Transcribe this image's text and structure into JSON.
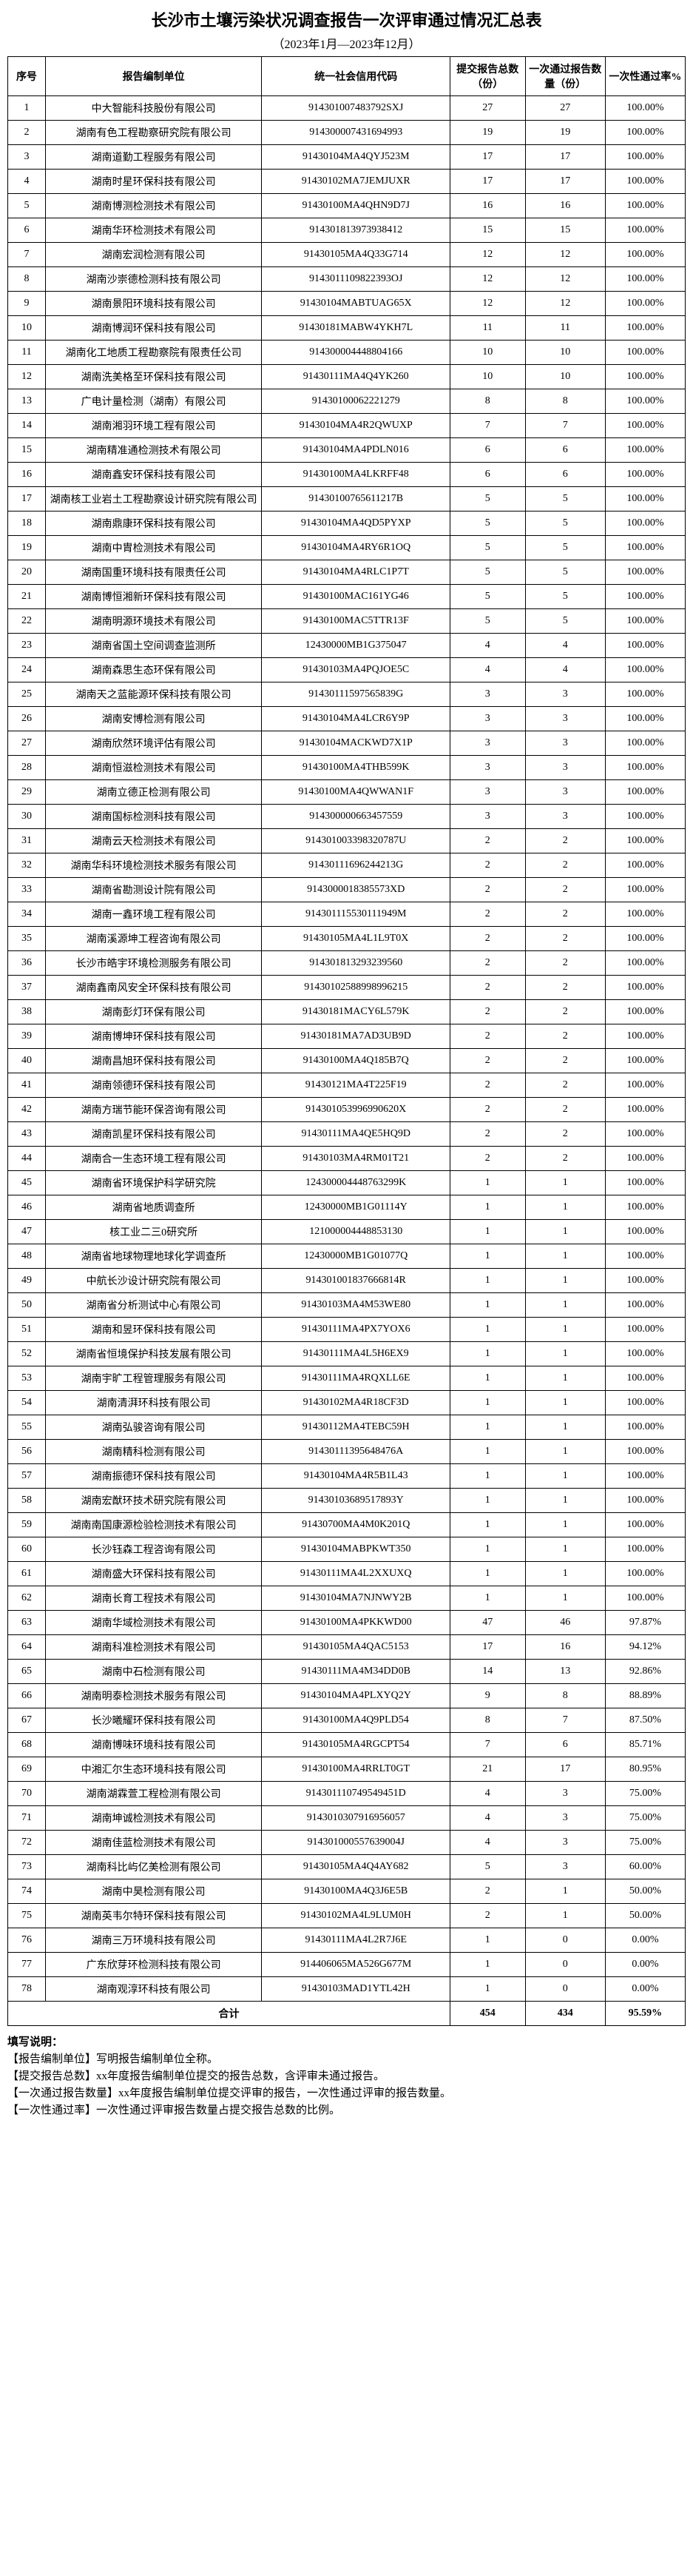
{
  "title": "长沙市土壤污染状况调查报告一次评审通过情况汇总表",
  "subtitle": "（2023年1月—2023年12月）",
  "headers": {
    "seq": "序号",
    "unit": "报告编制单位",
    "code": "统一社会信用代码",
    "submit": "提交报告总数（份）",
    "pass": "一次通过报告数量（份）",
    "rate": "一次性通过率%"
  },
  "rows": [
    {
      "seq": "1",
      "unit": "中大智能科技股份有限公司",
      "code": "914301007483792SXJ",
      "submit": "27",
      "pass": "27",
      "rate": "100.00%"
    },
    {
      "seq": "2",
      "unit": "湖南有色工程勘察研究院有限公司",
      "code": "914300007431694993",
      "submit": "19",
      "pass": "19",
      "rate": "100.00%"
    },
    {
      "seq": "3",
      "unit": "湖南道勤工程服务有限公司",
      "code": "91430104MA4QYJ523M",
      "submit": "17",
      "pass": "17",
      "rate": "100.00%"
    },
    {
      "seq": "4",
      "unit": "湖南时星环保科技有限公司",
      "code": "91430102MA7JEMJUXR",
      "submit": "17",
      "pass": "17",
      "rate": "100.00%"
    },
    {
      "seq": "5",
      "unit": "湖南博测检测技术有限公司",
      "code": "91430100MA4QHN9D7J",
      "submit": "16",
      "pass": "16",
      "rate": "100.00%"
    },
    {
      "seq": "6",
      "unit": "湖南华环检测技术有限公司",
      "code": "914301813973938412",
      "submit": "15",
      "pass": "15",
      "rate": "100.00%"
    },
    {
      "seq": "7",
      "unit": "湖南宏润检测有限公司",
      "code": "91430105MA4Q33G714",
      "submit": "12",
      "pass": "12",
      "rate": "100.00%"
    },
    {
      "seq": "8",
      "unit": "湖南沙崇德检测科技有限公司",
      "code": "9143011109822393OJ",
      "submit": "12",
      "pass": "12",
      "rate": "100.00%"
    },
    {
      "seq": "9",
      "unit": "湖南景阳环境科技有限公司",
      "code": "91430104MABTUAG65X",
      "submit": "12",
      "pass": "12",
      "rate": "100.00%"
    },
    {
      "seq": "10",
      "unit": "湖南博润环保科技有限公司",
      "code": "91430181MABW4YKH7L",
      "submit": "11",
      "pass": "11",
      "rate": "100.00%"
    },
    {
      "seq": "11",
      "unit": "湖南化工地质工程勘察院有限责任公司",
      "code": "914300004448804166",
      "submit": "10",
      "pass": "10",
      "rate": "100.00%"
    },
    {
      "seq": "12",
      "unit": "湖南洗美格至环保科技有限公司",
      "code": "91430111MA4Q4YK260",
      "submit": "10",
      "pass": "10",
      "rate": "100.00%"
    },
    {
      "seq": "13",
      "unit": "广电计量检测（湖南）有限公司",
      "code": "91430100062221279",
      "submit": "8",
      "pass": "8",
      "rate": "100.00%"
    },
    {
      "seq": "14",
      "unit": "湖南湘羽环境工程有限公司",
      "code": "91430104MA4R2QWUXP",
      "submit": "7",
      "pass": "7",
      "rate": "100.00%"
    },
    {
      "seq": "15",
      "unit": "湖南精准通检测技术有限公司",
      "code": "91430104MA4PDLN016",
      "submit": "6",
      "pass": "6",
      "rate": "100.00%"
    },
    {
      "seq": "16",
      "unit": "湖南鑫安环保科技有限公司",
      "code": "91430100MA4LKRFF48",
      "submit": "6",
      "pass": "6",
      "rate": "100.00%"
    },
    {
      "seq": "17",
      "unit": "湖南核工业岩土工程勘察设计研究院有限公司",
      "code": "91430100765611217B",
      "submit": "5",
      "pass": "5",
      "rate": "100.00%"
    },
    {
      "seq": "18",
      "unit": "湖南鼎康环保科技有限公司",
      "code": "91430104MA4QD5PYXP",
      "submit": "5",
      "pass": "5",
      "rate": "100.00%"
    },
    {
      "seq": "19",
      "unit": "湖南中胄检测技术有限公司",
      "code": "91430104MA4RY6R1OQ",
      "submit": "5",
      "pass": "5",
      "rate": "100.00%"
    },
    {
      "seq": "20",
      "unit": "湖南国重环境科技有限责任公司",
      "code": "91430104MA4RLC1P7T",
      "submit": "5",
      "pass": "5",
      "rate": "100.00%"
    },
    {
      "seq": "21",
      "unit": "湖南博恒湘新环保科技有限公司",
      "code": "91430100MAC161YG46",
      "submit": "5",
      "pass": "5",
      "rate": "100.00%"
    },
    {
      "seq": "22",
      "unit": "湖南明源环境技术有限公司",
      "code": "91430100MAC5TTR13F",
      "submit": "5",
      "pass": "5",
      "rate": "100.00%"
    },
    {
      "seq": "23",
      "unit": "湖南省国土空间调查监测所",
      "code": "12430000MB1G375047",
      "submit": "4",
      "pass": "4",
      "rate": "100.00%"
    },
    {
      "seq": "24",
      "unit": "湖南森思生态环保有限公司",
      "code": "91430103MA4PQJOE5C",
      "submit": "4",
      "pass": "4",
      "rate": "100.00%"
    },
    {
      "seq": "25",
      "unit": "湖南天之蓝能源环保科技有限公司",
      "code": "91430111597565839G",
      "submit": "3",
      "pass": "3",
      "rate": "100.00%"
    },
    {
      "seq": "26",
      "unit": "湖南安博检测有限公司",
      "code": "91430104MA4LCR6Y9P",
      "submit": "3",
      "pass": "3",
      "rate": "100.00%"
    },
    {
      "seq": "27",
      "unit": "湖南欣然环境评估有限公司",
      "code": "91430104MACKWD7X1P",
      "submit": "3",
      "pass": "3",
      "rate": "100.00%"
    },
    {
      "seq": "28",
      "unit": "湖南恒滋检测技术有限公司",
      "code": "91430100MA4THB599K",
      "submit": "3",
      "pass": "3",
      "rate": "100.00%"
    },
    {
      "seq": "29",
      "unit": "湖南立德正检测有限公司",
      "code": "91430100MA4QWWAN1F",
      "submit": "3",
      "pass": "3",
      "rate": "100.00%"
    },
    {
      "seq": "30",
      "unit": "湖南国标检测科技有限公司",
      "code": "914300000663457559",
      "submit": "3",
      "pass": "3",
      "rate": "100.00%"
    },
    {
      "seq": "31",
      "unit": "湖南云天检测技术有限公司",
      "code": "914301003398320787U",
      "submit": "2",
      "pass": "2",
      "rate": "100.00%"
    },
    {
      "seq": "32",
      "unit": "湖南华科环境检测技术服务有限公司",
      "code": "91430111696244213G",
      "submit": "2",
      "pass": "2",
      "rate": "100.00%"
    },
    {
      "seq": "33",
      "unit": "湖南省勘测设计院有限公司",
      "code": "9143000018385573XD",
      "submit": "2",
      "pass": "2",
      "rate": "100.00%"
    },
    {
      "seq": "34",
      "unit": "湖南一鑫环境工程有限公司",
      "code": "914301115530111949M",
      "submit": "2",
      "pass": "2",
      "rate": "100.00%"
    },
    {
      "seq": "35",
      "unit": "湖南溪源坤工程咨询有限公司",
      "code": "91430105MA4L1L9T0X",
      "submit": "2",
      "pass": "2",
      "rate": "100.00%"
    },
    {
      "seq": "36",
      "unit": "长沙市皓宇环境检测服务有限公司",
      "code": "914301813293239560",
      "submit": "2",
      "pass": "2",
      "rate": "100.00%"
    },
    {
      "seq": "37",
      "unit": "湖南鑫南风安全环保科技有限公司",
      "code": "91430102588998996215",
      "submit": "2",
      "pass": "2",
      "rate": "100.00%"
    },
    {
      "seq": "38",
      "unit": "湖南彭灯环保有限公司",
      "code": "91430181MACY6L579K",
      "submit": "2",
      "pass": "2",
      "rate": "100.00%"
    },
    {
      "seq": "39",
      "unit": "湖南博坤环保科技有限公司",
      "code": "91430181MA7AD3UB9D",
      "submit": "2",
      "pass": "2",
      "rate": "100.00%"
    },
    {
      "seq": "40",
      "unit": "湖南昌旭环保科技有限公司",
      "code": "91430100MA4Q185B7Q",
      "submit": "2",
      "pass": "2",
      "rate": "100.00%"
    },
    {
      "seq": "41",
      "unit": "湖南领德环保科技有限公司",
      "code": "91430121MA4T225F19",
      "submit": "2",
      "pass": "2",
      "rate": "100.00%"
    },
    {
      "seq": "42",
      "unit": "湖南方瑞节能环保咨询有限公司",
      "code": "914301053996990620X",
      "submit": "2",
      "pass": "2",
      "rate": "100.00%"
    },
    {
      "seq": "43",
      "unit": "湖南凯星环保科技有限公司",
      "code": "91430111MA4QE5HQ9D",
      "submit": "2",
      "pass": "2",
      "rate": "100.00%"
    },
    {
      "seq": "44",
      "unit": "湖南合一生态环境工程有限公司",
      "code": "91430103MA4RM01T21",
      "submit": "2",
      "pass": "2",
      "rate": "100.00%"
    },
    {
      "seq": "45",
      "unit": "湖南省环境保护科学研究院",
      "code": "124300004448763299K",
      "submit": "1",
      "pass": "1",
      "rate": "100.00%"
    },
    {
      "seq": "46",
      "unit": "湖南省地质调查所",
      "code": "12430000MB1G01114Y",
      "submit": "1",
      "pass": "1",
      "rate": "100.00%"
    },
    {
      "seq": "47",
      "unit": "核工业二三0研究所",
      "code": "121000004448853130",
      "submit": "1",
      "pass": "1",
      "rate": "100.00%"
    },
    {
      "seq": "48",
      "unit": "湖南省地球物理地球化学调查所",
      "code": "12430000MB1G01077Q",
      "submit": "1",
      "pass": "1",
      "rate": "100.00%"
    },
    {
      "seq": "49",
      "unit": "中航长沙设计研究院有限公司",
      "code": "914301001837666814R",
      "submit": "1",
      "pass": "1",
      "rate": "100.00%"
    },
    {
      "seq": "50",
      "unit": "湖南省分析测试中心有限公司",
      "code": "91430103MA4M53WE80",
      "submit": "1",
      "pass": "1",
      "rate": "100.00%"
    },
    {
      "seq": "51",
      "unit": "湖南和昱环保科技有限公司",
      "code": "91430111MA4PX7YOX6",
      "submit": "1",
      "pass": "1",
      "rate": "100.00%"
    },
    {
      "seq": "52",
      "unit": "湖南省恒境保护科技发展有限公司",
      "code": "91430111MA4L5H6EX9",
      "submit": "1",
      "pass": "1",
      "rate": "100.00%"
    },
    {
      "seq": "53",
      "unit": "湖南宇旷工程管理服务有限公司",
      "code": "91430111MA4RQXLL6E",
      "submit": "1",
      "pass": "1",
      "rate": "100.00%"
    },
    {
      "seq": "54",
      "unit": "湖南清湃环科技有限公司",
      "code": "91430102MA4R18CF3D",
      "submit": "1",
      "pass": "1",
      "rate": "100.00%"
    },
    {
      "seq": "55",
      "unit": "湖南弘骏咨询有限公司",
      "code": "91430112MA4TEBC59H",
      "submit": "1",
      "pass": "1",
      "rate": "100.00%"
    },
    {
      "seq": "56",
      "unit": "湖南精科检测有限公司",
      "code": "91430111395648476A",
      "submit": "1",
      "pass": "1",
      "rate": "100.00%"
    },
    {
      "seq": "57",
      "unit": "湖南振德环保科技有限公司",
      "code": "91430104MA4R5B1L43",
      "submit": "1",
      "pass": "1",
      "rate": "100.00%"
    },
    {
      "seq": "58",
      "unit": "湖南宏猷环技术研究院有限公司",
      "code": "91430103689517893Y",
      "submit": "1",
      "pass": "1",
      "rate": "100.00%"
    },
    {
      "seq": "59",
      "unit": "湖南南国康源检验检测技术有限公司",
      "code": "91430700MA4M0K201Q",
      "submit": "1",
      "pass": "1",
      "rate": "100.00%"
    },
    {
      "seq": "60",
      "unit": "长沙钰森工程咨询有限公司",
      "code": "91430104MABPKWT350",
      "submit": "1",
      "pass": "1",
      "rate": "100.00%"
    },
    {
      "seq": "61",
      "unit": "湖南盛大环保科技有限公司",
      "code": "91430111MA4L2XXUXQ",
      "submit": "1",
      "pass": "1",
      "rate": "100.00%"
    },
    {
      "seq": "62",
      "unit": "湖南长育工程技术有限公司",
      "code": "91430104MA7NJNWY2B",
      "submit": "1",
      "pass": "1",
      "rate": "100.00%"
    },
    {
      "seq": "63",
      "unit": "湖南华域检测技术有限公司",
      "code": "91430100MA4PKKWD00",
      "submit": "47",
      "pass": "46",
      "rate": "97.87%"
    },
    {
      "seq": "64",
      "unit": "湖南科准检测技术有限公司",
      "code": "91430105MA4QAC5153",
      "submit": "17",
      "pass": "16",
      "rate": "94.12%"
    },
    {
      "seq": "65",
      "unit": "湖南中石检测有限公司",
      "code": "91430111MA4M34DD0B",
      "submit": "14",
      "pass": "13",
      "rate": "92.86%"
    },
    {
      "seq": "66",
      "unit": "湖南明泰检测技术服务有限公司",
      "code": "91430104MA4PLXYQ2Y",
      "submit": "9",
      "pass": "8",
      "rate": "88.89%"
    },
    {
      "seq": "67",
      "unit": "长沙曦耀环保科技有限公司",
      "code": "91430100MA4Q9PLD54",
      "submit": "8",
      "pass": "7",
      "rate": "87.50%"
    },
    {
      "seq": "68",
      "unit": "湖南博味环境科技有限公司",
      "code": "91430105MA4RGCPT54",
      "submit": "7",
      "pass": "6",
      "rate": "85.71%"
    },
    {
      "seq": "69",
      "unit": "中湘汇尔生态环境科技有限公司",
      "code": "91430100MA4RRLT0GT",
      "submit": "21",
      "pass": "17",
      "rate": "80.95%"
    },
    {
      "seq": "70",
      "unit": "湖南湖霖萱工程检测有限公司",
      "code": "914301110749549451D",
      "submit": "4",
      "pass": "3",
      "rate": "75.00%"
    },
    {
      "seq": "71",
      "unit": "湖南坤诚检测技术有限公司",
      "code": "9143010307916956057",
      "submit": "4",
      "pass": "3",
      "rate": "75.00%"
    },
    {
      "seq": "72",
      "unit": "湖南佳蓝检测技术有限公司",
      "code": "914301000557639004J",
      "submit": "4",
      "pass": "3",
      "rate": "75.00%"
    },
    {
      "seq": "73",
      "unit": "湖南科比屿亿美检测有限公司",
      "code": "91430105MA4Q4AY682",
      "submit": "5",
      "pass": "3",
      "rate": "60.00%"
    },
    {
      "seq": "74",
      "unit": "湖南中昊检测有限公司",
      "code": "91430100MA4Q3J6E5B",
      "submit": "2",
      "pass": "1",
      "rate": "50.00%"
    },
    {
      "seq": "75",
      "unit": "湖南英韦尔特环保科技有限公司",
      "code": "91430102MA4L9LUM0H",
      "submit": "2",
      "pass": "1",
      "rate": "50.00%"
    },
    {
      "seq": "76",
      "unit": "湖南三万环境科技有限公司",
      "code": "91430111MA4L2R7J6E",
      "submit": "1",
      "pass": "0",
      "rate": "0.00%"
    },
    {
      "seq": "77",
      "unit": "广东欣芽环检测科技有限公司",
      "code": "914406065MA526G677M",
      "submit": "1",
      "pass": "0",
      "rate": "0.00%"
    },
    {
      "seq": "78",
      "unit": "湖南观淳环科技有限公司",
      "code": "91430103MAD1YTL42H",
      "submit": "1",
      "pass": "0",
      "rate": "0.00%"
    }
  ],
  "total": {
    "label": "合计",
    "submit": "454",
    "pass": "434",
    "rate": "95.59%"
  },
  "notes": {
    "title": "填写说明：",
    "items": [
      "【报告编制单位】写明报告编制单位全称。",
      "【提交报告总数】xx年度报告编制单位提交的报告总数，含评审未通过报告。",
      "【一次通过报告数量】xx年度报告编制单位提交评审的报告，一次性通过评审的报告数量。",
      "【一次性通过率】一次性通过评审报告数量占提交报告总数的比例。"
    ]
  }
}
